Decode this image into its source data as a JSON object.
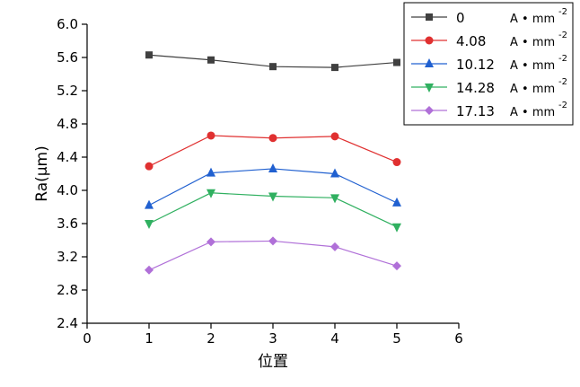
{
  "chart_data": {
    "type": "line",
    "xlabel": "位置",
    "ylabel": "Ra(μm)",
    "xlim": [
      0,
      6
    ],
    "ylim": [
      2.4,
      6.0
    ],
    "xticks": [
      0,
      1,
      2,
      3,
      4,
      5,
      6
    ],
    "yticks": [
      "2.4",
      "2.8",
      "3.2",
      "3.6",
      "4.0",
      "4.4",
      "4.8",
      "5.2",
      "5.6",
      "6.0"
    ],
    "x": [
      1,
      2,
      3,
      4,
      5
    ],
    "grid": false,
    "legend_position": "top-right",
    "unit": "A • mm",
    "unit_exponent": "-2",
    "series": [
      {
        "name": "0",
        "color": "#404040",
        "marker": "square",
        "values": [
          5.63,
          5.57,
          5.49,
          5.48,
          5.54
        ]
      },
      {
        "name": "4.08",
        "color": "#e03030",
        "marker": "circle",
        "values": [
          4.29,
          4.66,
          4.63,
          4.65,
          4.34
        ]
      },
      {
        "name": "10.12",
        "color": "#2060d0",
        "marker": "triangle-up",
        "values": [
          3.82,
          4.21,
          4.26,
          4.2,
          3.85
        ]
      },
      {
        "name": "14.28",
        "color": "#30b060",
        "marker": "triangle-down",
        "values": [
          3.6,
          3.97,
          3.93,
          3.91,
          3.56
        ]
      },
      {
        "name": "17.13",
        "color": "#b070d8",
        "marker": "diamond",
        "values": [
          3.04,
          3.38,
          3.39,
          3.32,
          3.09
        ]
      }
    ]
  }
}
